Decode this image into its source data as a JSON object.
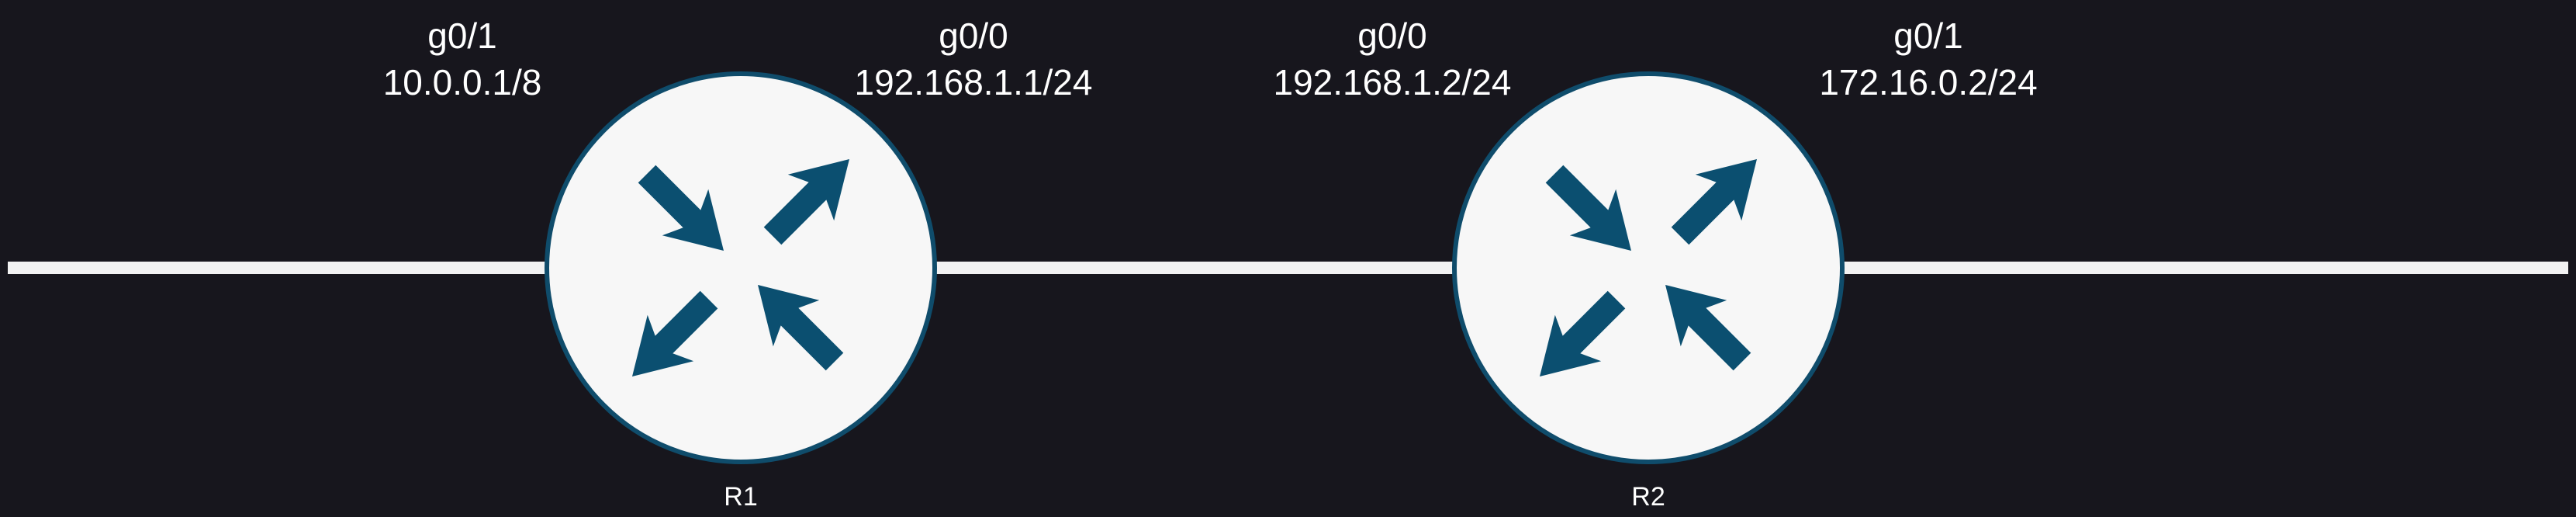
{
  "colors": {
    "background": "#17161d",
    "link": "#f2f2f2",
    "router_fill": "#f7f7f7",
    "router_stroke": "#0f4c6b",
    "arrow": "#0b4f70",
    "text": "#ffffff"
  },
  "routers": [
    {
      "name": "R1",
      "icon": "router-icon"
    },
    {
      "name": "R2",
      "icon": "router-icon"
    }
  ],
  "interfaces": [
    {
      "name": "g0/1",
      "ip": "10.0.0.1/8"
    },
    {
      "name": "g0/0",
      "ip": "192.168.1.1/24"
    },
    {
      "name": "g0/0",
      "ip": "192.168.1.2/24"
    },
    {
      "name": "g0/1",
      "ip": "172.16.0.2/24"
    }
  ]
}
